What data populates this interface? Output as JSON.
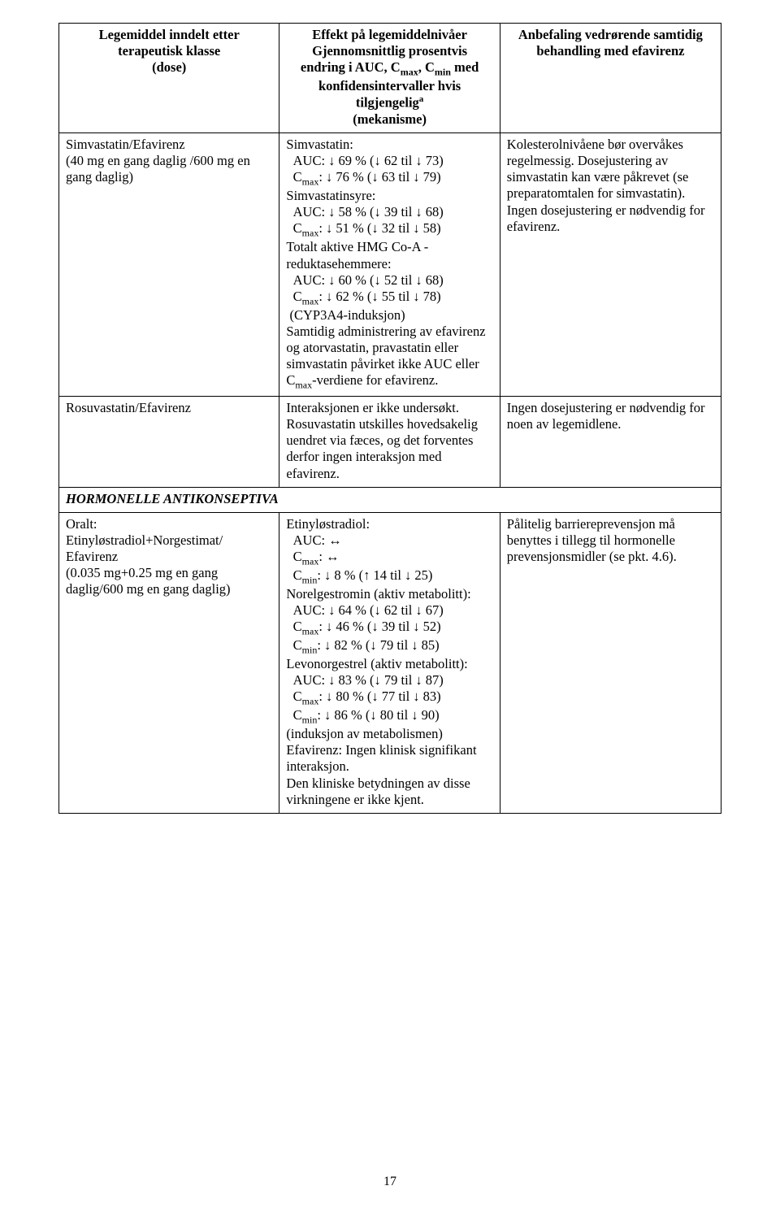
{
  "pageNumber": "17",
  "table": {
    "head": {
      "col1": "Legemiddel inndelt etter\nterapeutisk klasse\n(dose)",
      "col2_line1": "Effekt på legemiddelnivåer",
      "col2_line2": "Gjennomsnittlig prosentvis",
      "col2_line3": "endring i AUC, C",
      "col2_cmax": "max",
      "col2_mid": ", C",
      "col2_cmin": "min",
      "col2_after": " med",
      "col2_line4": "konfidensintervaller hvis",
      "col2_line5": "tilgjengelig",
      "col2_supa": "a",
      "col2_line6": "(mekanisme)",
      "col3": "Anbefaling vedrørende samtidig\nbehandling med efavirenz"
    },
    "rows": [
      {
        "c1": "Simvastatin/Efavirenz\n(40 mg en gang daglig /600 mg en gang daglig)",
        "c2": "Simvastatin:\n  AUC: ↓ 69 % (↓ 62 til ↓ 73)\n  Cmax: ↓ 76 % (↓ 63 til ↓ 79)\nSimvastatinsyre:\n  AUC: ↓ 58 % (↓ 39 til ↓ 68)\n  Cmax: ↓ 51 % (↓ 32 til ↓ 58)\nTotalt aktive HMG Co-A -reduktasehemmere:\n  AUC: ↓ 60 % (↓ 52 til ↓ 68)\n  Cmax: ↓ 62 % (↓ 55 til ↓ 78)\n (CYP3A4-induksjon)\nSamtidig administrering av efavirenz og atorvastatin, pravastatin eller simvastatin påvirket ikke AUC eller Cmax-verdiene for efavirenz.",
        "c3": "Kolesterolnivåene bør overvåkes regelmessig. Dosejustering av simvastatin kan være påkrevet (se preparatomtalen for simvastatin). Ingen dosejustering er nødvendig for efavirenz."
      },
      {
        "c1": "Rosuvastatin/Efavirenz",
        "c2": "Interaksjonen er ikke undersøkt. Rosuvastatin utskilles hovedsakelig uendret via fæces, og det forventes derfor ingen interaksjon med efavirenz.",
        "c3": "Ingen dosejustering er nødvendig for noen av legemidlene."
      },
      {
        "section": "HORMONELLE ANTIKONSEPTIVA"
      },
      {
        "c1": "Oralt:\nEtinyløstradiol+Norgestimat/\nEfavirenz\n(0.035 mg+0.25 mg en gang daglig/600 mg en gang daglig)",
        "c2": "Etinyløstradiol:\n  AUC: ↔\n  Cmax: ↔\n  Cmin: ↓ 8 % (↑ 14 til ↓ 25)\nNorelgestromin (aktiv metabolitt):\n  AUC: ↓ 64 % (↓ 62 til ↓ 67)\n  Cmax: ↓ 46 % (↓ 39 til ↓ 52)\n  Cmin: ↓ 82 % (↓ 79 til ↓ 85)\nLevonorgestrel (aktiv metabolitt):\n  AUC: ↓ 83 % (↓ 79 til ↓ 87)\n  Cmax: ↓ 80 % (↓ 77 til ↓ 83)\n  Cmin: ↓ 86 % (↓ 80 til ↓ 90)\n(induksjon av metabolismen)\nEfavirenz: Ingen klinisk signifikant interaksjon.\nDen kliniske betydningen av disse virkningene er ikke kjent.",
        "c3": "Pålitelig barriereprevensjon må benyttes i tillegg til hormonelle prevensjonsmidler (se pkt. 4.6)."
      }
    ]
  }
}
